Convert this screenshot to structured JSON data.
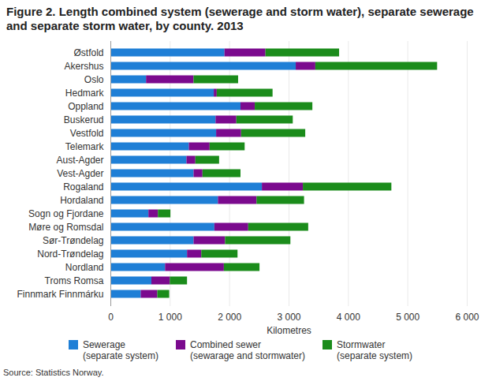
{
  "chart_data": {
    "type": "bar",
    "orientation": "horizontal",
    "stacked": true,
    "grid": true,
    "title": "Figure 2. Length combined system (sewerage and storm water), separate sewerage and separate storm water, by county. 2013",
    "xlabel": "Kilometres",
    "source": "Source: Statistics Norway.",
    "categories": [
      "Østfold",
      "Akershus",
      "Oslo",
      "Hedmark",
      "Oppland",
      "Buskerud",
      "Vestfold",
      "Telemark",
      "Aust-Agder",
      "Vest-Agder",
      "Rogaland",
      "Hordaland",
      "Sogn og Fjordane",
      "Møre og Romsdal",
      "Sør-Trøndelag",
      "Nord-Trøndelag",
      "Nordland",
      "Troms Romsa",
      "Finnmark Finnmárku"
    ],
    "series": [
      {
        "name": "Sewerage\n(separate system)",
        "color": "#1f7fd6",
        "values": [
          1920,
          3120,
          600,
          1740,
          2190,
          1770,
          1780,
          1320,
          1280,
          1400,
          2550,
          1810,
          640,
          1750,
          1400,
          1290,
          920,
          690,
          510
        ]
      },
      {
        "name": "Combined sewer\n(sewarage and stormwater)",
        "color": "#7b0a8e",
        "values": [
          690,
          330,
          800,
          50,
          240,
          350,
          420,
          350,
          150,
          150,
          690,
          650,
          160,
          570,
          530,
          240,
          990,
          310,
          280
        ]
      },
      {
        "name": "Stormwater\n(separate system)",
        "color": "#1b8c1b",
        "values": [
          1240,
          2050,
          750,
          940,
          970,
          950,
          1080,
          590,
          400,
          640,
          1490,
          800,
          210,
          1010,
          1100,
          610,
          600,
          290,
          200
        ]
      }
    ],
    "xlim": [
      0,
      6000
    ],
    "xticks": [
      0,
      {
        "value": 1000,
        "label": "1 000"
      },
      {
        "value": 2000,
        "label": "2 000"
      },
      {
        "value": 3000,
        "label": "3 000"
      },
      {
        "value": 4000,
        "label": "4 000"
      },
      {
        "value": 5000,
        "label": "5 000"
      },
      {
        "value": 6000,
        "label": "6 000"
      }
    ]
  }
}
